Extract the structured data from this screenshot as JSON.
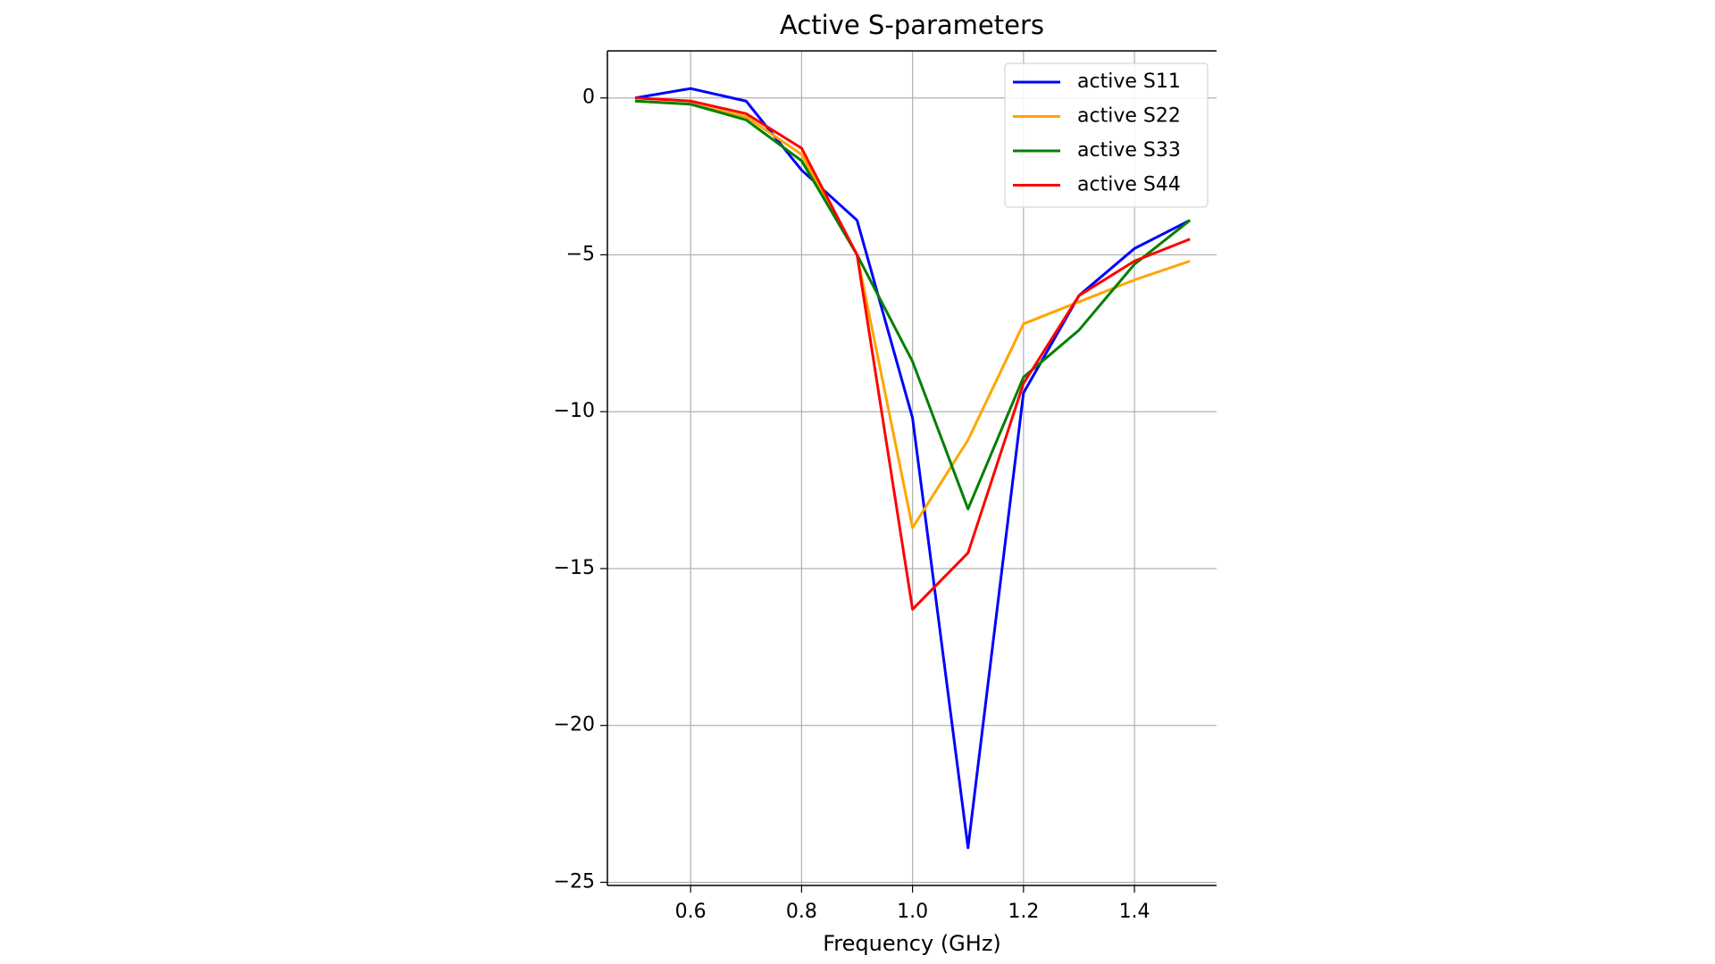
{
  "chart_data": {
    "type": "line",
    "title": "Active S-parameters",
    "x_label": "Frequency (GHz)",
    "x": [
      0.5,
      0.6,
      0.7,
      0.8,
      0.9,
      1.0,
      1.1,
      1.2,
      1.3,
      1.4,
      1.5
    ],
    "series": [
      {
        "name": "active S11",
        "color": "#0000ff",
        "values": [
          0,
          0.3,
          -0.1,
          -2.3,
          -3.9,
          -10.2,
          -23.9,
          -9.4,
          -6.3,
          -4.8,
          -3.9
        ]
      },
      {
        "name": "active S22",
        "color": "#ffa500",
        "values": [
          -0.1,
          -0.2,
          -0.6,
          -1.8,
          -5.0,
          -13.7,
          -10.9,
          -7.2,
          -6.5,
          -5.8,
          -5.2
        ]
      },
      {
        "name": "active S33",
        "color": "#008000",
        "values": [
          -0.1,
          -0.2,
          -0.7,
          -2.0,
          -5.0,
          -8.4,
          -13.1,
          -8.9,
          -7.4,
          -5.3,
          -3.9
        ]
      },
      {
        "name": "active S44",
        "color": "#ff0000",
        "values": [
          0,
          -0.1,
          -0.5,
          -1.6,
          -5.0,
          -16.3,
          -14.5,
          -9.1,
          -6.3,
          -5.2,
          -4.5
        ]
      }
    ],
    "xlim": [
      0.45,
      1.548
    ],
    "ylim": [
      -25.1,
      1.5
    ],
    "xticks": [
      0.6,
      0.8,
      {
        "value": 1.0,
        "label": "1.0"
      },
      1.2,
      1.4
    ],
    "yticks": [
      {
        "value": -25,
        "label": "−25"
      },
      {
        "value": -20,
        "label": "−20"
      },
      {
        "value": -15,
        "label": "−15"
      },
      {
        "value": -10,
        "label": "−10"
      },
      {
        "value": -5,
        "label": "−5"
      },
      0
    ],
    "grid": true,
    "legend": "upper right"
  }
}
